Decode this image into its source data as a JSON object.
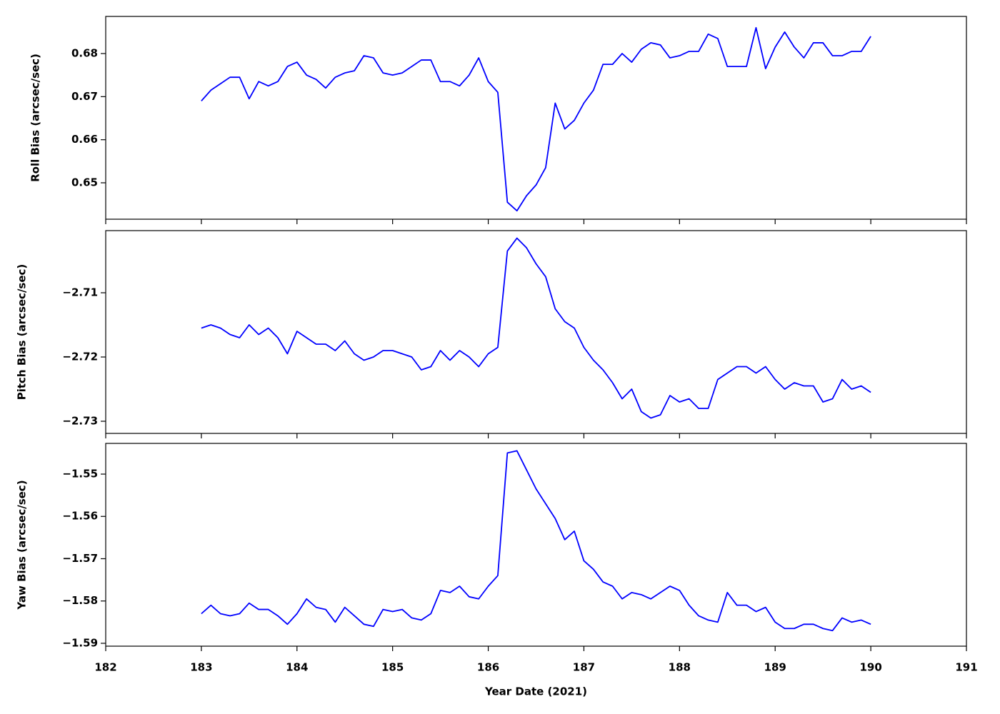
{
  "chart_data": [
    {
      "type": "line",
      "ylabel": "Roll Bias (arcsec/sec)",
      "x": [
        183.0,
        183.1,
        183.2,
        183.3,
        183.4,
        183.5,
        183.6,
        183.7,
        183.8,
        183.9,
        184.0,
        184.1,
        184.2,
        184.3,
        184.4,
        184.5,
        184.6,
        184.7,
        184.8,
        184.9,
        185.0,
        185.1,
        185.2,
        185.3,
        185.4,
        185.5,
        185.6,
        185.7,
        185.8,
        185.9,
        186.0,
        186.1,
        186.2,
        186.3,
        186.4,
        186.5,
        186.6,
        186.7,
        186.8,
        186.9,
        187.0,
        187.1,
        187.2,
        187.3,
        187.4,
        187.5,
        187.6,
        187.7,
        187.8,
        187.9,
        188.0,
        188.1,
        188.2,
        188.3,
        188.4,
        188.5,
        188.6,
        188.7,
        188.8,
        188.9,
        189.0,
        189.1,
        189.2,
        189.3,
        189.4,
        189.5,
        189.6,
        189.7,
        189.8,
        189.9,
        190.0
      ],
      "series": [
        {
          "color": "#0000ff",
          "values": [
            0.669,
            0.6715,
            0.673,
            0.6745,
            0.6745,
            0.6695,
            0.6735,
            0.6725,
            0.6735,
            0.677,
            0.678,
            0.675,
            0.674,
            0.672,
            0.6745,
            0.6755,
            0.676,
            0.6795,
            0.679,
            0.6755,
            0.675,
            0.6755,
            0.677,
            0.6785,
            0.6785,
            0.6735,
            0.6735,
            0.6725,
            0.675,
            0.679,
            0.6735,
            0.671,
            0.6455,
            0.6435,
            0.647,
            0.6495,
            0.6535,
            0.6685,
            0.6625,
            0.6645,
            0.6685,
            0.6715,
            0.6775,
            0.6775,
            0.68,
            0.678,
            0.681,
            0.6825,
            0.682,
            0.679,
            0.6795,
            0.6805,
            0.6805,
            0.6845,
            0.6835,
            0.677,
            0.677,
            0.677,
            0.686,
            0.6765,
            0.6815,
            0.685,
            0.6815,
            0.679,
            0.6825,
            0.6825,
            0.6795,
            0.6795,
            0.6805,
            0.6805,
            0.684
          ]
        }
      ],
      "xlim": [
        182,
        191
      ],
      "xticks": [
        182,
        183,
        184,
        185,
        186,
        187,
        188,
        189,
        190,
        191
      ],
      "ylim": [
        0.64155,
        0.68862
      ],
      "yticks": [
        0.65,
        0.66,
        0.67,
        0.68
      ]
    },
    {
      "type": "line",
      "ylabel": "Pitch Bias (arcsec/sec)",
      "x": [
        183.0,
        183.1,
        183.2,
        183.3,
        183.4,
        183.5,
        183.6,
        183.7,
        183.8,
        183.9,
        184.0,
        184.1,
        184.2,
        184.3,
        184.4,
        184.5,
        184.6,
        184.7,
        184.8,
        184.9,
        185.0,
        185.1,
        185.2,
        185.3,
        185.4,
        185.5,
        185.6,
        185.7,
        185.8,
        185.9,
        186.0,
        186.1,
        186.2,
        186.3,
        186.4,
        186.5,
        186.6,
        186.7,
        186.8,
        186.9,
        187.0,
        187.1,
        187.2,
        187.3,
        187.4,
        187.5,
        187.6,
        187.7,
        187.8,
        187.9,
        188.0,
        188.1,
        188.2,
        188.3,
        188.4,
        188.5,
        188.6,
        188.7,
        188.8,
        188.9,
        189.0,
        189.1,
        189.2,
        189.3,
        189.4,
        189.5,
        189.6,
        189.7,
        189.8,
        189.9,
        190.0
      ],
      "series": [
        {
          "color": "#0000ff",
          "values": [
            -2.7155,
            -2.715,
            -2.7155,
            -2.7165,
            -2.717,
            -2.715,
            -2.7165,
            -2.7155,
            -2.717,
            -2.7195,
            -2.716,
            -2.717,
            -2.718,
            -2.718,
            -2.719,
            -2.7175,
            -2.7195,
            -2.7205,
            -2.72,
            -2.719,
            -2.719,
            -2.7195,
            -2.72,
            -2.722,
            -2.7215,
            -2.719,
            -2.7205,
            -2.719,
            -2.72,
            -2.7215,
            -2.7195,
            -2.7185,
            -2.7035,
            -2.7015,
            -2.703,
            -2.7055,
            -2.7075,
            -2.7125,
            -2.7145,
            -2.7155,
            -2.7185,
            -2.7205,
            -2.722,
            -2.724,
            -2.7265,
            -2.725,
            -2.7285,
            -2.7295,
            -2.729,
            -2.726,
            -2.727,
            -2.7265,
            -2.728,
            -2.728,
            -2.7235,
            -2.7225,
            -2.7215,
            -2.7215,
            -2.7225,
            -2.7215,
            -2.7235,
            -2.725,
            -2.724,
            -2.7245,
            -2.7245,
            -2.727,
            -2.7265,
            -2.7235,
            -2.725,
            -2.7245,
            -2.7255
          ]
        }
      ],
      "xlim": [
        182,
        191
      ],
      "xticks": [
        182,
        183,
        184,
        185,
        186,
        187,
        188,
        189,
        190,
        191
      ],
      "ylim": [
        -2.73189,
        -2.70033
      ],
      "yticks": [
        {
          "value": -2.73,
          "label": "−2.73"
        },
        {
          "value": -2.72,
          "label": "−2.72"
        },
        {
          "value": -2.71,
          "label": "−2.71"
        }
      ]
    },
    {
      "type": "line",
      "ylabel": "Yaw Bias (arcsec/sec)",
      "xlabel": "Year Date (2021)",
      "x": [
        183.0,
        183.1,
        183.2,
        183.3,
        183.4,
        183.5,
        183.6,
        183.7,
        183.8,
        183.9,
        184.0,
        184.1,
        184.2,
        184.3,
        184.4,
        184.5,
        184.6,
        184.7,
        184.8,
        184.9,
        185.0,
        185.1,
        185.2,
        185.3,
        185.4,
        185.5,
        185.6,
        185.7,
        185.8,
        185.9,
        186.0,
        186.1,
        186.2,
        186.3,
        186.4,
        186.5,
        186.6,
        186.7,
        186.8,
        186.9,
        187.0,
        187.1,
        187.2,
        187.3,
        187.4,
        187.5,
        187.6,
        187.7,
        187.8,
        187.9,
        188.0,
        188.1,
        188.2,
        188.3,
        188.4,
        188.5,
        188.6,
        188.7,
        188.8,
        188.9,
        189.0,
        189.1,
        189.2,
        189.3,
        189.4,
        189.5,
        189.6,
        189.7,
        189.8,
        189.9,
        190.0
      ],
      "series": [
        {
          "color": "#0000ff",
          "values": [
            -1.583,
            -1.581,
            -1.583,
            -1.5835,
            -1.583,
            -1.5805,
            -1.582,
            -1.582,
            -1.5835,
            -1.5855,
            -1.583,
            -1.5795,
            -1.5815,
            -1.582,
            -1.585,
            -1.5815,
            -1.5835,
            -1.5855,
            -1.586,
            -1.582,
            -1.5825,
            -1.582,
            -1.584,
            -1.5845,
            -1.583,
            -1.5775,
            -1.578,
            -1.5765,
            -1.579,
            -1.5795,
            -1.5765,
            -1.574,
            -1.545,
            -1.5445,
            -1.549,
            -1.5535,
            -1.557,
            -1.5605,
            -1.5655,
            -1.5635,
            -1.5705,
            -1.5725,
            -1.5755,
            -1.5765,
            -1.5795,
            -1.578,
            -1.5785,
            -1.5795,
            -1.578,
            -1.5765,
            -1.5775,
            -1.581,
            -1.5835,
            -1.5845,
            -1.585,
            -1.578,
            -1.581,
            -1.581,
            -1.5825,
            -1.5815,
            -1.585,
            -1.5865,
            -1.5865,
            -1.5855,
            -1.5855,
            -1.5865,
            -1.587,
            -1.584,
            -1.585,
            -1.5845,
            -1.5855
          ]
        }
      ],
      "xlim": [
        182,
        191
      ],
      "xticks": [
        182,
        183,
        184,
        185,
        186,
        187,
        188,
        189,
        190,
        191
      ],
      "ylim": [
        -1.59068,
        -1.54274
      ],
      "yticks": [
        {
          "value": -1.59,
          "label": "−1.59"
        },
        {
          "value": -1.58,
          "label": "−1.58"
        },
        {
          "value": -1.57,
          "label": "−1.57"
        },
        {
          "value": -1.56,
          "label": "−1.56"
        },
        {
          "value": -1.55,
          "label": "−1.55"
        }
      ]
    }
  ]
}
